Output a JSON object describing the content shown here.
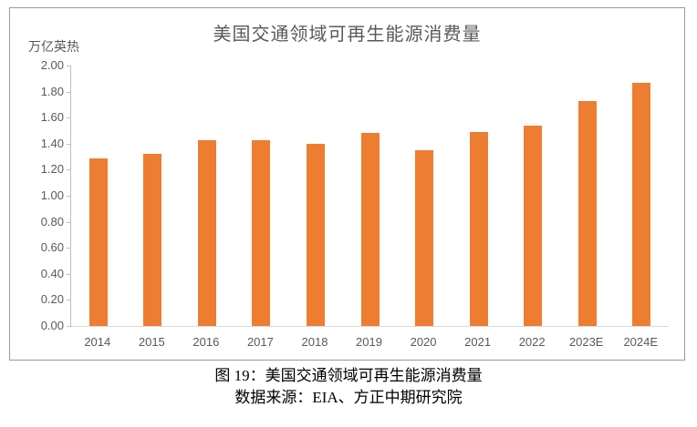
{
  "chart_data": {
    "type": "bar",
    "title": "美国交通领域可再生能源消费量",
    "unit_label": "万亿英热",
    "categories": [
      "2014",
      "2015",
      "2016",
      "2017",
      "2018",
      "2019",
      "2020",
      "2021",
      "2022",
      "2023E",
      "2024E"
    ],
    "values": [
      1.29,
      1.32,
      1.43,
      1.43,
      1.4,
      1.48,
      1.35,
      1.49,
      1.54,
      1.73,
      1.87
    ],
    "xlabel": "",
    "ylabel": "万亿英热",
    "ylim": [
      0,
      2.0
    ],
    "ytick_labels": [
      "2.00",
      "1.80",
      "1.60",
      "1.40",
      "1.20",
      "1.00",
      "0.80",
      "0.60",
      "0.40",
      "0.20",
      "0.00"
    ],
    "grid": false,
    "legend_position": "none",
    "bar_color": "#ED7D31"
  },
  "caption": {
    "line1": "图 19：美国交通领域可再生能源消费量",
    "line2": "数据来源：EIA、方正中期研究院"
  },
  "colors": {
    "bar": "#ED7D31",
    "axis_text": "#595959",
    "axis_line": "#BFBFBF",
    "baseline": "#D9D9D9",
    "frame_border": "#999999",
    "caption_text": "#000000"
  }
}
